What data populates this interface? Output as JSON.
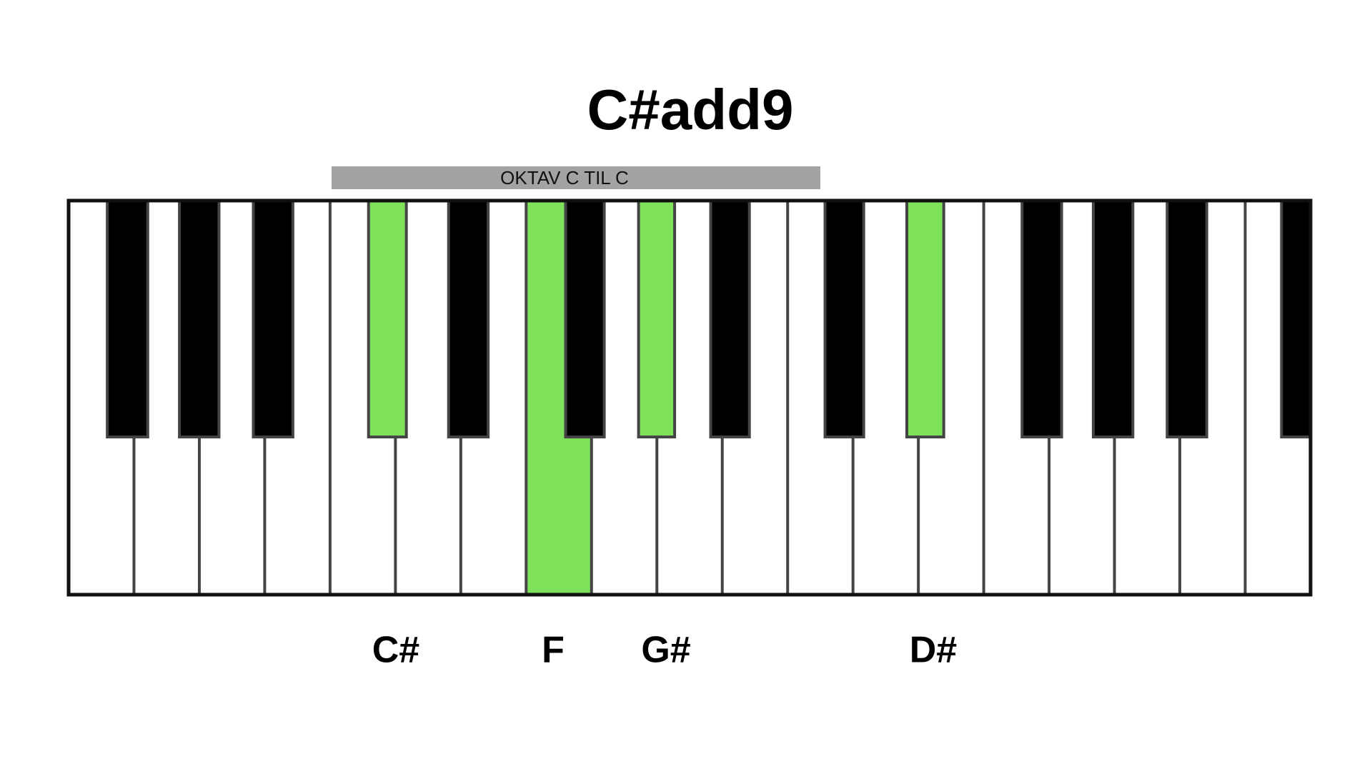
{
  "title": "C#add9",
  "octave_label": "OKTAV C TIL C",
  "notes": [
    "C#",
    "F",
    "G#",
    "D#"
  ]
}
